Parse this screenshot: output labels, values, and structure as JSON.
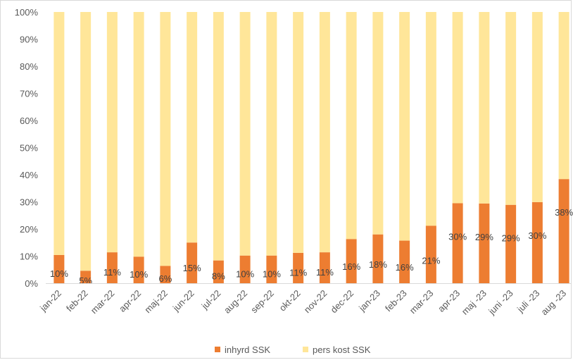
{
  "chart_data": {
    "type": "bar",
    "stacked": true,
    "percent_stacked": true,
    "categories": [
      "jan-22",
      "feb-22",
      "mar-22",
      "apr-22",
      "maj-22",
      "jun-22",
      "jul-22",
      "aug-22",
      "sep-22",
      "okt-22",
      "nov-22",
      "dec-22",
      "jan-23",
      "feb-23",
      "mar-23",
      "apr-23",
      "maj -23",
      "juni -23",
      "juli -23",
      "aug -23"
    ],
    "series": [
      {
        "name": "inhyrd SSK",
        "color": "#ed7d31",
        "values": [
          10.4,
          4.6,
          11.4,
          9.8,
          6.4,
          15.0,
          8.4,
          10.2,
          10.2,
          11.2,
          11.4,
          16.3,
          18.0,
          15.7,
          21.2,
          29.5,
          29.4,
          28.9,
          29.9,
          38.4
        ],
        "labels": [
          "10%",
          "5%",
          "11%",
          "10%",
          "6%",
          "15%",
          "8%",
          "10%",
          "10%",
          "11%",
          "11%",
          "16%",
          "18%",
          "16%",
          "21%",
          "30%",
          "29%",
          "29%",
          "30%",
          "38%"
        ]
      },
      {
        "name": "pers kost SSK",
        "color": "#ffe699",
        "values": [
          89.6,
          95.4,
          88.6,
          90.2,
          93.6,
          85.0,
          91.6,
          89.8,
          89.8,
          88.8,
          88.6,
          83.7,
          82.0,
          84.3,
          78.8,
          70.5,
          70.6,
          71.1,
          70.1,
          61.6
        ]
      }
    ],
    "y_ticks": [
      "0%",
      "10%",
      "20%",
      "30%",
      "40%",
      "50%",
      "60%",
      "70%",
      "80%",
      "90%",
      "100%"
    ],
    "ylim": [
      0,
      100
    ],
    "legend_position": "bottom",
    "grid": false
  }
}
